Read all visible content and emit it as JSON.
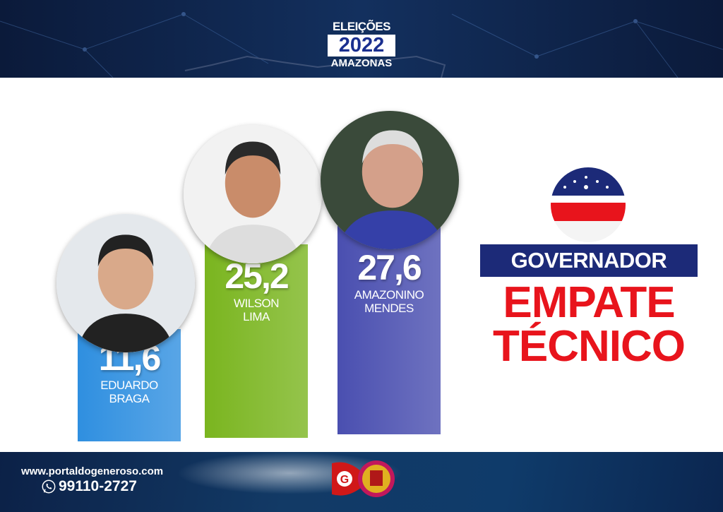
{
  "header": {
    "line1": "ELEIÇÕES",
    "year": "2022",
    "line3": "AMAZONAS"
  },
  "chart_data": {
    "type": "bar",
    "categories": [
      "EDUARDO BRAGA",
      "WILSON LIMA",
      "AMAZONINO MENDES"
    ],
    "values": [
      11.6,
      25.2,
      27.6
    ],
    "value_labels": [
      "11,6",
      "25,2",
      "27,6"
    ],
    "name_lines": [
      [
        "EDUARDO",
        "BRAGA"
      ],
      [
        "WILSON",
        "LIMA"
      ],
      [
        "AMAZONINO",
        "MENDES"
      ]
    ],
    "colors": [
      "#2f8fe0",
      "#7ab51f",
      "#4a4fb0"
    ]
  },
  "side": {
    "title": "GOVERNADOR",
    "headline1": "EMPATE",
    "headline2": "TÉCNICO",
    "flag": "amazonas-flag"
  },
  "footer": {
    "url": "www.portaldogeneroso.com",
    "phone": "99110-2727",
    "phone_icon": "whatsapp-icon",
    "logo": "G portal logo"
  }
}
